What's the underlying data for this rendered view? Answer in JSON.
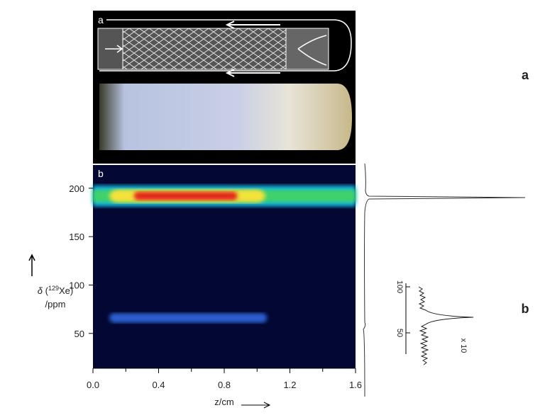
{
  "chart_data": {
    "type": "heatmap",
    "panel_labels": [
      "a",
      "b"
    ],
    "figure_labels": [
      "a",
      "b"
    ],
    "xlabel": "z/cm",
    "ylabel_symbol": "δ",
    "ylabel_isotope": "129",
    "ylabel_element": "Xe",
    "ylabel_unit": "/ppm",
    "xlim": [
      0,
      1.6
    ],
    "ylim": [
      14,
      224
    ],
    "xticks": [
      {
        "value": 0,
        "label": "0.0"
      },
      0.4,
      0.8,
      1.2,
      1.6
    ],
    "xminor": [
      0.2,
      0.6,
      1.0,
      1.4
    ],
    "yticks": [
      50,
      100,
      150,
      200
    ],
    "bands": [
      {
        "ppm": 192,
        "half_width": 9,
        "z": [
          0,
          1.6
        ],
        "core_z": [
          0.1,
          1.05
        ],
        "peak_z": [
          0.25,
          0.88
        ]
      },
      {
        "ppm": 66,
        "half_width": 5,
        "z": [
          0.1,
          1.06
        ]
      }
    ],
    "inset_ticks": [
      100,
      50
    ],
    "inset_scale": "x 10"
  }
}
